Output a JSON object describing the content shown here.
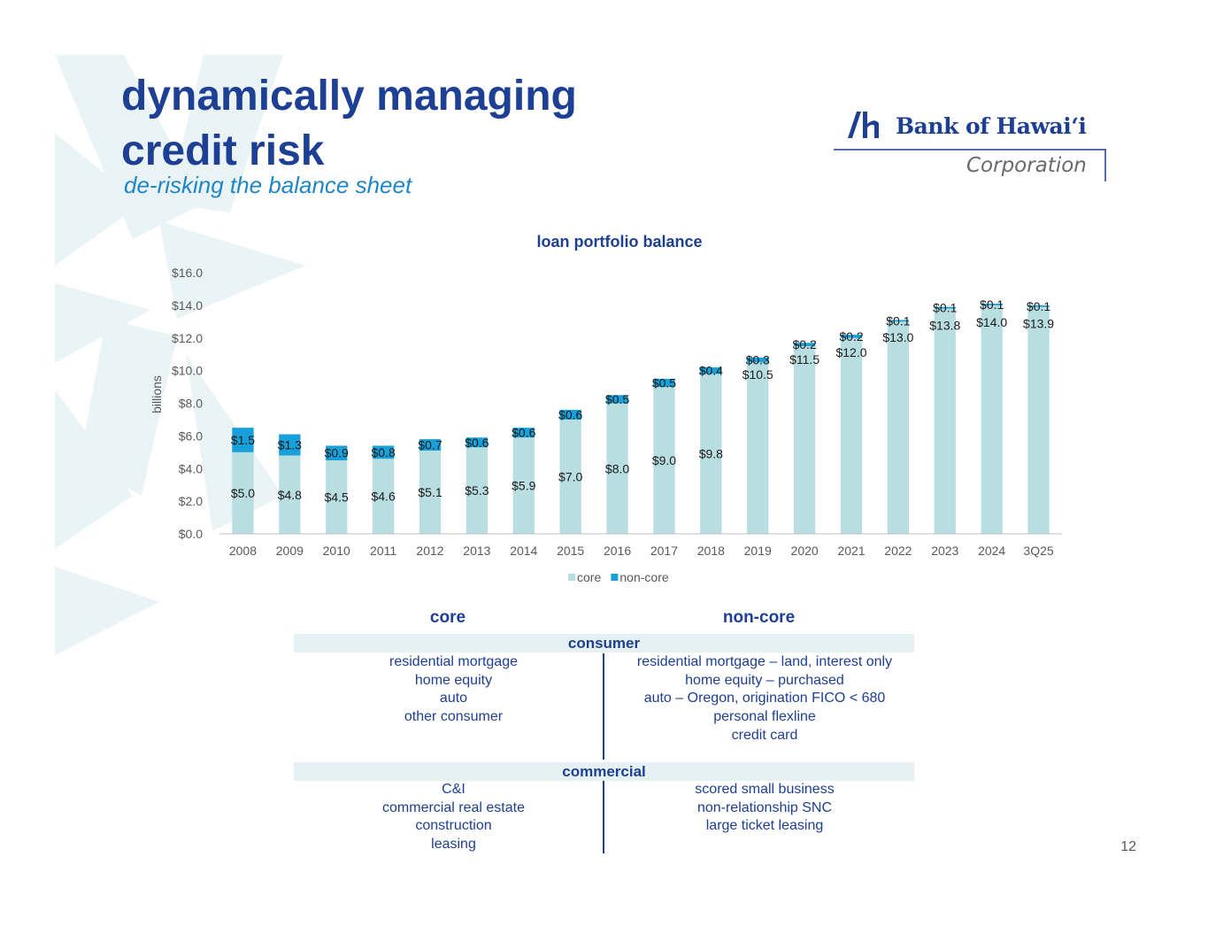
{
  "header": {
    "title_line1": "dynamically managing",
    "title_line2": "credit risk",
    "subtitle": "de-risking the balance sheet"
  },
  "logo": {
    "name": "Bank of Hawaiʻi",
    "sub": "Corporation"
  },
  "chart_data": {
    "type": "bar",
    "stacked": true,
    "title": "loan portfolio balance",
    "xlabel": "",
    "ylabel": "billions",
    "ylim": [
      0,
      16
    ],
    "ytick_step": 2,
    "y_tick_labels": [
      "$0.0",
      "$2.0",
      "$4.0",
      "$6.0",
      "$8.0",
      "$10.0",
      "$12.0",
      "$14.0",
      "$16.0"
    ],
    "categories": [
      "2008",
      "2009",
      "2010",
      "2011",
      "2012",
      "2013",
      "2014",
      "2015",
      "2016",
      "2017",
      "2018",
      "2019",
      "2020",
      "2021",
      "2022",
      "2023",
      "2024",
      "3Q25"
    ],
    "series": [
      {
        "name": "core",
        "color": "#b9dee2",
        "values": [
          5.0,
          4.8,
          4.5,
          4.6,
          5.1,
          5.3,
          5.9,
          7.0,
          8.0,
          9.0,
          9.8,
          10.5,
          11.5,
          12.0,
          13.0,
          13.8,
          14.0,
          13.9
        ],
        "labels": [
          "$5.0",
          "$4.8",
          "$4.5",
          "$4.6",
          "$5.1",
          "$5.3",
          "$5.9",
          "$7.0",
          "$8.0",
          "$9.0",
          "$9.8",
          "$10.5",
          "$11.5",
          "$12.0",
          "$13.0",
          "$13.8",
          "$14.0",
          "$13.9"
        ]
      },
      {
        "name": "non-core",
        "color": "#17a0d9",
        "values": [
          1.5,
          1.3,
          0.9,
          0.8,
          0.7,
          0.6,
          0.6,
          0.6,
          0.5,
          0.5,
          0.4,
          0.3,
          0.2,
          0.2,
          0.1,
          0.1,
          0.1,
          0.1
        ],
        "labels": [
          "$1.5",
          "$1.3",
          "$0.9",
          "$0.8",
          "$0.7",
          "$0.6",
          "$0.6",
          "$0.6",
          "$0.5",
          "$0.5",
          "$0.4",
          "$0.3",
          "$0.2",
          "$0.2",
          "$0.1",
          "$0.1",
          "$0.1",
          "$0.1"
        ]
      }
    ],
    "legend": "bottom",
    "grid": false
  },
  "table": {
    "col_core": "core",
    "col_noncore": "non-core",
    "consumer": {
      "header": "consumer",
      "core": [
        "residential mortgage",
        "home equity",
        "auto",
        "other consumer"
      ],
      "noncore": [
        "residential mortgage – land, interest only",
        "home equity – purchased",
        "auto – Oregon, origination FICO < 680",
        "personal flexline",
        "credit card"
      ]
    },
    "commercial": {
      "header": "commercial",
      "core": [
        "C&I",
        "commercial real estate",
        "construction",
        "leasing"
      ],
      "noncore": [
        "scored small business",
        "non-relationship SNC",
        "large ticket leasing"
      ]
    }
  },
  "page_number": "12",
  "colors": {
    "brand_blue": "#1d3f94",
    "subtitle_blue": "#1f86c8",
    "core": "#b9dee2",
    "non_core": "#17a0d9",
    "band": "#e6f1f3"
  }
}
